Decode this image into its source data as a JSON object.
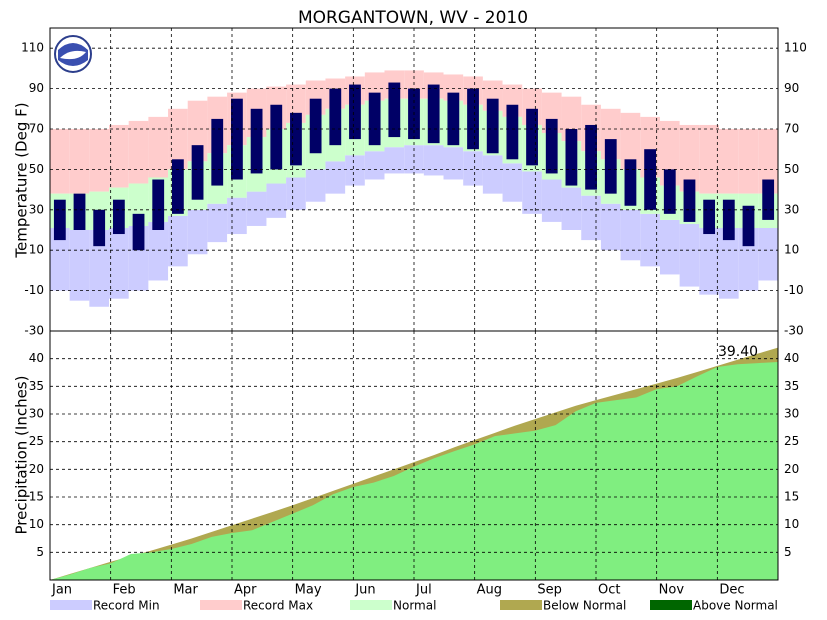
{
  "chart_data": [
    {
      "type": "band",
      "title": "MORGANTOWN, WV - 2010",
      "ylabel": "Temperature (Deg F)",
      "ylim": [
        -30,
        120
      ],
      "yticks": [
        -30,
        -10,
        10,
        30,
        50,
        70,
        90,
        110
      ],
      "grid": true,
      "record_min": [
        -10,
        -15,
        -18,
        -14,
        -10,
        -5,
        2,
        8,
        14,
        18,
        22,
        26,
        30,
        34,
        38,
        42,
        45,
        48,
        48,
        47,
        45,
        42,
        38,
        34,
        28,
        24,
        20,
        15,
        10,
        5,
        2,
        -2,
        -8,
        -12,
        -14,
        -10,
        -5
      ],
      "record_max": [
        70,
        70,
        70,
        72,
        74,
        76,
        80,
        84,
        86,
        88,
        90,
        91,
        92,
        94,
        95,
        96,
        98,
        99,
        99,
        98,
        97,
        96,
        94,
        92,
        90,
        88,
        86,
        82,
        80,
        78,
        76,
        74,
        72,
        72,
        70,
        70,
        70
      ],
      "normal_high": [
        38,
        38,
        39,
        41,
        43,
        46,
        50,
        54,
        58,
        62,
        66,
        70,
        73,
        77,
        80,
        82,
        84,
        85,
        85,
        85,
        84,
        82,
        79,
        76,
        72,
        68,
        64,
        59,
        55,
        50,
        46,
        42,
        39,
        38,
        38,
        38,
        38
      ],
      "normal_low": [
        21,
        20,
        20,
        21,
        22,
        24,
        27,
        30,
        33,
        36,
        39,
        43,
        46,
        50,
        54,
        57,
        59,
        61,
        62,
        62,
        61,
        59,
        57,
        53,
        49,
        45,
        41,
        37,
        33,
        30,
        28,
        25,
        23,
        21,
        21,
        21,
        21
      ],
      "observed": {
        "color": "#000066",
        "high": [
          35,
          38,
          30,
          35,
          28,
          45,
          55,
          62,
          75,
          85,
          80,
          82,
          78,
          85,
          90,
          92,
          88,
          93,
          90,
          92,
          88,
          90,
          85,
          82,
          80,
          75,
          70,
          72,
          65,
          55,
          60,
          50,
          45,
          35,
          35,
          32,
          45
        ],
        "low": [
          15,
          20,
          12,
          18,
          10,
          20,
          28,
          35,
          42,
          45,
          48,
          50,
          52,
          58,
          62,
          65,
          62,
          66,
          65,
          63,
          62,
          60,
          58,
          55,
          52,
          48,
          42,
          40,
          38,
          32,
          30,
          28,
          24,
          18,
          15,
          12,
          25
        ]
      }
    },
    {
      "type": "area",
      "ylabel": "Precipitation (Inches)",
      "ylim": [
        0,
        45
      ],
      "yticks": [
        5,
        10,
        15,
        20,
        25,
        30,
        35,
        40
      ],
      "grid": true,
      "categories": [
        "Jan",
        null,
        null,
        "Feb",
        null,
        null,
        "Mar",
        null,
        null,
        "Apr",
        null,
        null,
        "May",
        null,
        null,
        "Jun",
        null,
        null,
        "Jul",
        null,
        null,
        "Aug",
        null,
        null,
        "Sep",
        null,
        null,
        "Oct",
        null,
        null,
        "Nov",
        null,
        null,
        "Dec",
        null,
        null,
        null
      ],
      "normal": [
        0,
        1.1,
        2.2,
        3.3,
        4.3,
        5.3,
        6.4,
        7.5,
        8.7,
        9.9,
        11.1,
        12.3,
        13.5,
        14.8,
        16.1,
        17.4,
        18.7,
        20,
        21.3,
        22.6,
        24,
        25.3,
        26.6,
        27.9,
        29.1,
        30.3,
        31.5,
        32.5,
        33.5,
        34.5,
        35.5,
        36.5,
        37.6,
        38.7,
        39.8,
        40.9,
        42
      ],
      "observed": {
        "color": "#80ee80",
        "values": [
          0,
          1.0,
          2.2,
          3.0,
          4.7,
          5.0,
          5.6,
          6.5,
          7.8,
          8.5,
          9.0,
          10.5,
          12.0,
          13.5,
          15.5,
          16.8,
          17.6,
          18.8,
          20.5,
          22.0,
          23.3,
          24.5,
          26.0,
          26.5,
          27,
          28.0,
          30.5,
          32.0,
          32.5,
          33.0,
          34.5,
          35.0,
          36.8,
          38.5,
          39.0,
          39.2,
          39.4
        ]
      },
      "annotation": "39.40"
    }
  ],
  "legend": [
    {
      "name": "Record Min",
      "color": "#ccccff"
    },
    {
      "name": "Record Max",
      "color": "#ffcccc"
    },
    {
      "name": "Normal",
      "color": "#ccffcc"
    },
    {
      "name": "Below Normal",
      "color": "#b0a850"
    },
    {
      "name": "Above Normal",
      "color": "#006600"
    }
  ]
}
